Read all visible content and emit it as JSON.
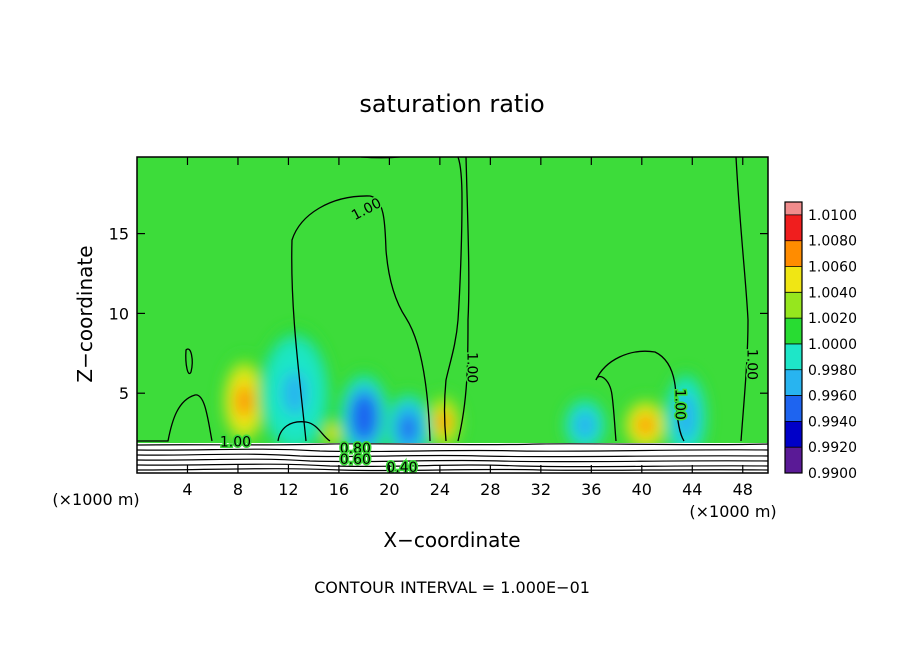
{
  "chart_data": {
    "type": "heatmap",
    "title": "saturation ratio",
    "xlabel": "X−coordinate",
    "ylabel": "Z−coordinate",
    "x_unit_left": "(×1000 m)",
    "x_unit_right": "(×1000 m)",
    "footer": "CONTOUR INTERVAL = 1.000E−01",
    "xlim": [
      0,
      50
    ],
    "ylim": [
      0,
      19.8
    ],
    "x_ticks": [
      4,
      8,
      12,
      16,
      20,
      24,
      28,
      32,
      36,
      40,
      44,
      48
    ],
    "y_ticks": [
      5,
      10,
      15
    ],
    "colorbar": {
      "levels": [
        "0.9900",
        "0.9920",
        "0.9940",
        "0.9960",
        "0.9980",
        "1.0000",
        "1.0020",
        "1.0040",
        "1.0060",
        "1.0080",
        "1.0100"
      ],
      "colors": [
        "#5a1a96",
        "#0000c8",
        "#1e64f0",
        "#28b4f0",
        "#1ee6c8",
        "#28dc32",
        "#96e61e",
        "#f0e614",
        "#ff8c00",
        "#f01e1e",
        "#f08c8c"
      ]
    },
    "background_value": 1.0,
    "background_color": "#3ddc3a",
    "contour_labels": [
      {
        "text": "1.00",
        "x": 18.2,
        "z": 16.5,
        "angle": -28
      },
      {
        "text": "1.00",
        "x": 26.5,
        "z": 6.6,
        "angle": 90
      },
      {
        "text": "1.00",
        "x": 43.0,
        "z": 4.3,
        "angle": 90
      },
      {
        "text": "1.00",
        "x": 48.7,
        "z": 6.8,
        "angle": 90
      },
      {
        "text": "1.00",
        "x": 7.8,
        "z": 1.9,
        "angle": 0
      },
      {
        "text": "0.80",
        "x": 17.3,
        "z": 1.5,
        "angle": 0
      },
      {
        "text": "0.60",
        "x": 17.3,
        "z": 0.8,
        "angle": 0
      },
      {
        "text": "0.40",
        "x": 21.0,
        "z": 0.3,
        "angle": 0
      }
    ],
    "features": [
      {
        "x": 8.5,
        "z": 4.5,
        "peak": 1.0075,
        "sx": 1.6,
        "sz": 2.5
      },
      {
        "x": 15.5,
        "z": 2.5,
        "peak": 1.0065,
        "sx": 0.8,
        "sz": 0.8
      },
      {
        "x": 24.3,
        "z": 3.2,
        "peak": 1.007,
        "sx": 1.3,
        "sz": 1.6
      },
      {
        "x": 40.3,
        "z": 3.0,
        "peak": 1.0075,
        "sx": 1.6,
        "sz": 1.5
      },
      {
        "x": 18.0,
        "z": 3.5,
        "peak": 0.994,
        "sx": 1.8,
        "sz": 2.5
      },
      {
        "x": 21.5,
        "z": 2.8,
        "peak": 0.995,
        "sx": 1.6,
        "sz": 2.0
      },
      {
        "x": 12.5,
        "z": 5.0,
        "peak": 0.9975,
        "sx": 2.5,
        "sz": 3.5
      },
      {
        "x": 35.5,
        "z": 3.0,
        "peak": 0.9965,
        "sx": 1.5,
        "sz": 1.5
      },
      {
        "x": 43.5,
        "z": 3.5,
        "peak": 0.997,
        "sx": 1.5,
        "sz": 2.5
      }
    ]
  }
}
